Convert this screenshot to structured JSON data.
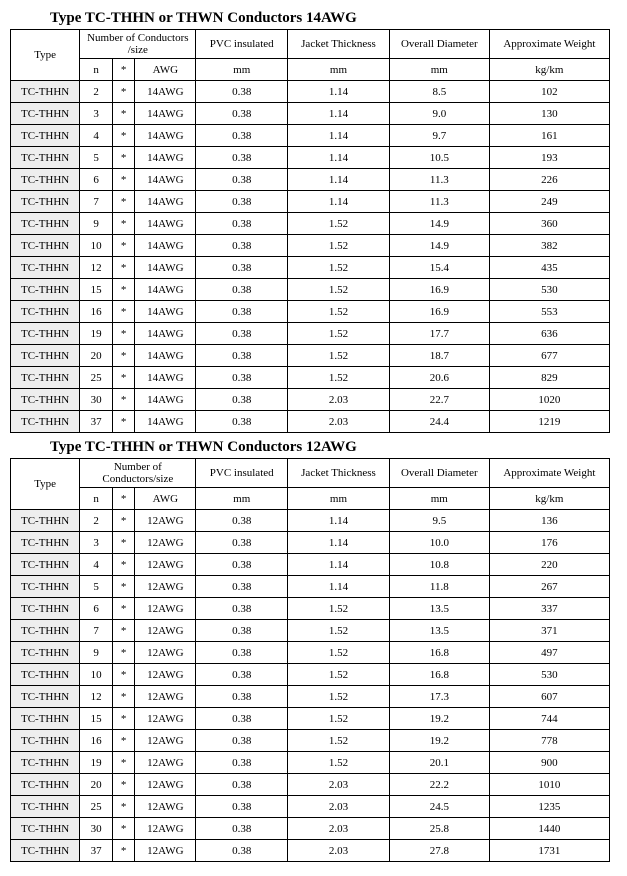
{
  "tables": [
    {
      "title": "Type TC-THHN or THWN Conductors 14AWG",
      "header": {
        "type": "Type",
        "noc": "Number of Conductors /size",
        "pvc": "PVC insulated",
        "jt": "Jacket Thickness",
        "od": "Overall Diameter",
        "wt": "Approximate Weight",
        "n": "n",
        "star": "*",
        "awg": "AWG",
        "u_pvc": "mm",
        "u_jt": "mm",
        "u_od": "mm",
        "u_wt": "kg/km"
      },
      "rows": [
        {
          "type": "TC-THHN",
          "n": "2",
          "star": "*",
          "awg": "14AWG",
          "pvc": "0.38",
          "jt": "1.14",
          "od": "8.5",
          "wt": "102"
        },
        {
          "type": "TC-THHN",
          "n": "3",
          "star": "*",
          "awg": "14AWG",
          "pvc": "0.38",
          "jt": "1.14",
          "od": "9.0",
          "wt": "130"
        },
        {
          "type": "TC-THHN",
          "n": "4",
          "star": "*",
          "awg": "14AWG",
          "pvc": "0.38",
          "jt": "1.14",
          "od": "9.7",
          "wt": "161"
        },
        {
          "type": "TC-THHN",
          "n": "5",
          "star": "*",
          "awg": "14AWG",
          "pvc": "0.38",
          "jt": "1.14",
          "od": "10.5",
          "wt": "193"
        },
        {
          "type": "TC-THHN",
          "n": "6",
          "star": "*",
          "awg": "14AWG",
          "pvc": "0.38",
          "jt": "1.14",
          "od": "11.3",
          "wt": "226"
        },
        {
          "type": "TC-THHN",
          "n": "7",
          "star": "*",
          "awg": "14AWG",
          "pvc": "0.38",
          "jt": "1.14",
          "od": "11.3",
          "wt": "249"
        },
        {
          "type": "TC-THHN",
          "n": "9",
          "star": "*",
          "awg": "14AWG",
          "pvc": "0.38",
          "jt": "1.52",
          "od": "14.9",
          "wt": "360"
        },
        {
          "type": "TC-THHN",
          "n": "10",
          "star": "*",
          "awg": "14AWG",
          "pvc": "0.38",
          "jt": "1.52",
          "od": "14.9",
          "wt": "382"
        },
        {
          "type": "TC-THHN",
          "n": "12",
          "star": "*",
          "awg": "14AWG",
          "pvc": "0.38",
          "jt": "1.52",
          "od": "15.4",
          "wt": "435"
        },
        {
          "type": "TC-THHN",
          "n": "15",
          "star": "*",
          "awg": "14AWG",
          "pvc": "0.38",
          "jt": "1.52",
          "od": "16.9",
          "wt": "530"
        },
        {
          "type": "TC-THHN",
          "n": "16",
          "star": "*",
          "awg": "14AWG",
          "pvc": "0.38",
          "jt": "1.52",
          "od": "16.9",
          "wt": "553"
        },
        {
          "type": "TC-THHN",
          "n": "19",
          "star": "*",
          "awg": "14AWG",
          "pvc": "0.38",
          "jt": "1.52",
          "od": "17.7",
          "wt": "636"
        },
        {
          "type": "TC-THHN",
          "n": "20",
          "star": "*",
          "awg": "14AWG",
          "pvc": "0.38",
          "jt": "1.52",
          "od": "18.7",
          "wt": "677"
        },
        {
          "type": "TC-THHN",
          "n": "25",
          "star": "*",
          "awg": "14AWG",
          "pvc": "0.38",
          "jt": "1.52",
          "od": "20.6",
          "wt": "829"
        },
        {
          "type": "TC-THHN",
          "n": "30",
          "star": "*",
          "awg": "14AWG",
          "pvc": "0.38",
          "jt": "2.03",
          "od": "22.7",
          "wt": "1020"
        },
        {
          "type": "TC-THHN",
          "n": "37",
          "star": "*",
          "awg": "14AWG",
          "pvc": "0.38",
          "jt": "2.03",
          "od": "24.4",
          "wt": "1219"
        }
      ]
    },
    {
      "title": "Type TC-THHN or THWN Conductors 12AWG",
      "header": {
        "type": "Type",
        "noc": "Number of Conductors/size",
        "pvc": "PVC insulated",
        "jt": "Jacket Thickness",
        "od": "Overall Diameter",
        "wt": "Approximate Weight",
        "n": "n",
        "star": "*",
        "awg": "AWG",
        "u_pvc": "mm",
        "u_jt": "mm",
        "u_od": "mm",
        "u_wt": "kg/km"
      },
      "rows": [
        {
          "type": "TC-THHN",
          "n": "2",
          "star": "*",
          "awg": "12AWG",
          "pvc": "0.38",
          "jt": "1.14",
          "od": "9.5",
          "wt": "136"
        },
        {
          "type": "TC-THHN",
          "n": "3",
          "star": "*",
          "awg": "12AWG",
          "pvc": "0.38",
          "jt": "1.14",
          "od": "10.0",
          "wt": "176"
        },
        {
          "type": "TC-THHN",
          "n": "4",
          "star": "*",
          "awg": "12AWG",
          "pvc": "0.38",
          "jt": "1.14",
          "od": "10.8",
          "wt": "220"
        },
        {
          "type": "TC-THHN",
          "n": "5",
          "star": "*",
          "awg": "12AWG",
          "pvc": "0.38",
          "jt": "1.14",
          "od": "11.8",
          "wt": "267"
        },
        {
          "type": "TC-THHN",
          "n": "6",
          "star": "*",
          "awg": "12AWG",
          "pvc": "0.38",
          "jt": "1.52",
          "od": "13.5",
          "wt": "337"
        },
        {
          "type": "TC-THHN",
          "n": "7",
          "star": "*",
          "awg": "12AWG",
          "pvc": "0.38",
          "jt": "1.52",
          "od": "13.5",
          "wt": "371"
        },
        {
          "type": "TC-THHN",
          "n": "9",
          "star": "*",
          "awg": "12AWG",
          "pvc": "0.38",
          "jt": "1.52",
          "od": "16.8",
          "wt": "497"
        },
        {
          "type": "TC-THHN",
          "n": "10",
          "star": "*",
          "awg": "12AWG",
          "pvc": "0.38",
          "jt": "1.52",
          "od": "16.8",
          "wt": "530"
        },
        {
          "type": "TC-THHN",
          "n": "12",
          "star": "*",
          "awg": "12AWG",
          "pvc": "0.38",
          "jt": "1.52",
          "od": "17.3",
          "wt": "607"
        },
        {
          "type": "TC-THHN",
          "n": "15",
          "star": "*",
          "awg": "12AWG",
          "pvc": "0.38",
          "jt": "1.52",
          "od": "19.2",
          "wt": "744"
        },
        {
          "type": "TC-THHN",
          "n": "16",
          "star": "*",
          "awg": "12AWG",
          "pvc": "0.38",
          "jt": "1.52",
          "od": "19.2",
          "wt": "778"
        },
        {
          "type": "TC-THHN",
          "n": "19",
          "star": "*",
          "awg": "12AWG",
          "pvc": "0.38",
          "jt": "1.52",
          "od": "20.1",
          "wt": "900"
        },
        {
          "type": "TC-THHN",
          "n": "20",
          "star": "*",
          "awg": "12AWG",
          "pvc": "0.38",
          "jt": "2.03",
          "od": "22.2",
          "wt": "1010"
        },
        {
          "type": "TC-THHN",
          "n": "25",
          "star": "*",
          "awg": "12AWG",
          "pvc": "0.38",
          "jt": "2.03",
          "od": "24.5",
          "wt": "1235"
        },
        {
          "type": "TC-THHN",
          "n": "30",
          "star": "*",
          "awg": "12AWG",
          "pvc": "0.38",
          "jt": "2.03",
          "od": "25.8",
          "wt": "1440"
        },
        {
          "type": "TC-THHN",
          "n": "37",
          "star": "*",
          "awg": "12AWG",
          "pvc": "0.38",
          "jt": "2.03",
          "od": "27.8",
          "wt": "1731"
        }
      ]
    }
  ]
}
